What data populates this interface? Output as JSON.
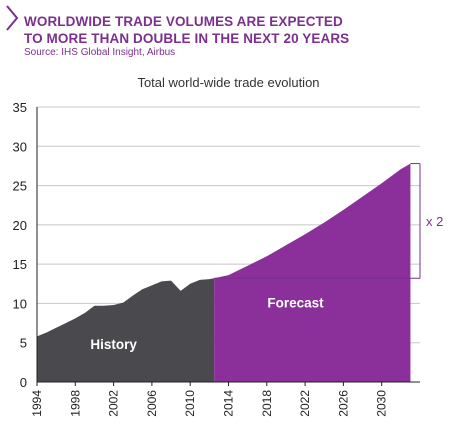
{
  "header": {
    "headline_line1": "WORLDWIDE TRADE VOLUMES ARE EXPECTED",
    "headline_line2": "TO MORE THAN DOUBLE IN THE NEXT 20 YEARS",
    "source": "Source: IHS Global Insight, Airbus"
  },
  "colors": {
    "history": "#4a4a4e",
    "forecast": "#8b2f9a",
    "accent": "#7b2f8e",
    "gridline": "#c8c8c8"
  },
  "chart_data": {
    "type": "area",
    "title": "Total world-wide trade evolution",
    "xlabel": "",
    "ylabel": "",
    "ylim": [
      0,
      35
    ],
    "xlim": [
      1994,
      2034
    ],
    "yticks": [
      0,
      5,
      10,
      15,
      20,
      25,
      30,
      35
    ],
    "xticks": [
      1994,
      1998,
      2002,
      2006,
      2010,
      2014,
      2018,
      2022,
      2026,
      2030
    ],
    "grid": "horizontal",
    "series": [
      {
        "name": "History",
        "x": [
          1994,
          1995,
          1996,
          1997,
          1998,
          1999,
          2000,
          2001,
          2002,
          2003,
          2004,
          2005,
          2006,
          2007,
          2008,
          2009,
          2010,
          2011,
          2012,
          2012.5
        ],
        "y": [
          5.8,
          6.3,
          6.9,
          7.5,
          8.1,
          8.8,
          9.7,
          9.7,
          9.8,
          10.1,
          11.0,
          11.8,
          12.3,
          12.8,
          12.9,
          11.6,
          12.5,
          13.0,
          13.1,
          13.2
        ]
      },
      {
        "name": "Forecast",
        "x": [
          2012.5,
          2014,
          2016,
          2018,
          2020,
          2022,
          2024,
          2026,
          2028,
          2030,
          2032,
          2033
        ],
        "y": [
          13.2,
          13.6,
          14.8,
          16.0,
          17.4,
          18.8,
          20.3,
          21.9,
          23.6,
          25.3,
          27.1,
          27.8
        ]
      }
    ],
    "annotations": [
      {
        "text": "x 2",
        "from_y": 13.2,
        "to_y": 27.8
      }
    ]
  }
}
